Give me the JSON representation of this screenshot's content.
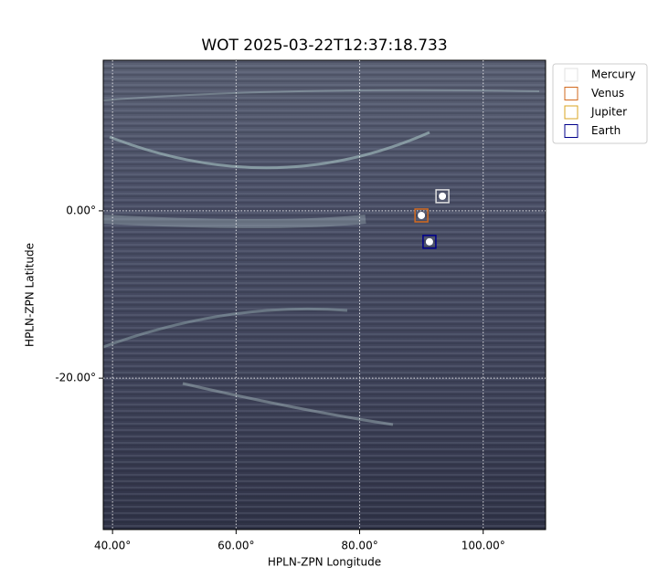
{
  "chart_data": {
    "type": "image",
    "title": "WOT 2025-03-22T12:37:18.733",
    "x_label": "HPLN-ZPN Longitude",
    "y_label": "HPLN-ZPN Latitude",
    "xlim": [
      38.5,
      110.1
    ],
    "ylim": [
      -38.1,
      18.0
    ],
    "xticks": [
      {
        "value": 40,
        "label": "40.00°"
      },
      {
        "value": 60,
        "label": "60.00°"
      },
      {
        "value": 80,
        "label": "80.00°"
      },
      {
        "value": 100,
        "label": "100.00°"
      }
    ],
    "yticks": [
      {
        "value": 0,
        "label": "0.00°"
      },
      {
        "value": -20,
        "label": "-20.00°"
      }
    ],
    "grid": true,
    "legend": "upper right outside",
    "series": [
      {
        "name": "Mercury",
        "color": "#e0e0e0",
        "x": [
          93.4
        ],
        "y": [
          1.75
        ]
      },
      {
        "name": "Venus",
        "color": "#d2691e",
        "x": [
          90.0
        ],
        "y": [
          -0.55
        ]
      },
      {
        "name": "Jupiter",
        "color": "#daa520",
        "x": [],
        "y": []
      },
      {
        "name": "Earth",
        "color": "#00008b",
        "x": [
          91.3
        ],
        "y": [
          -3.7
        ]
      }
    ]
  }
}
